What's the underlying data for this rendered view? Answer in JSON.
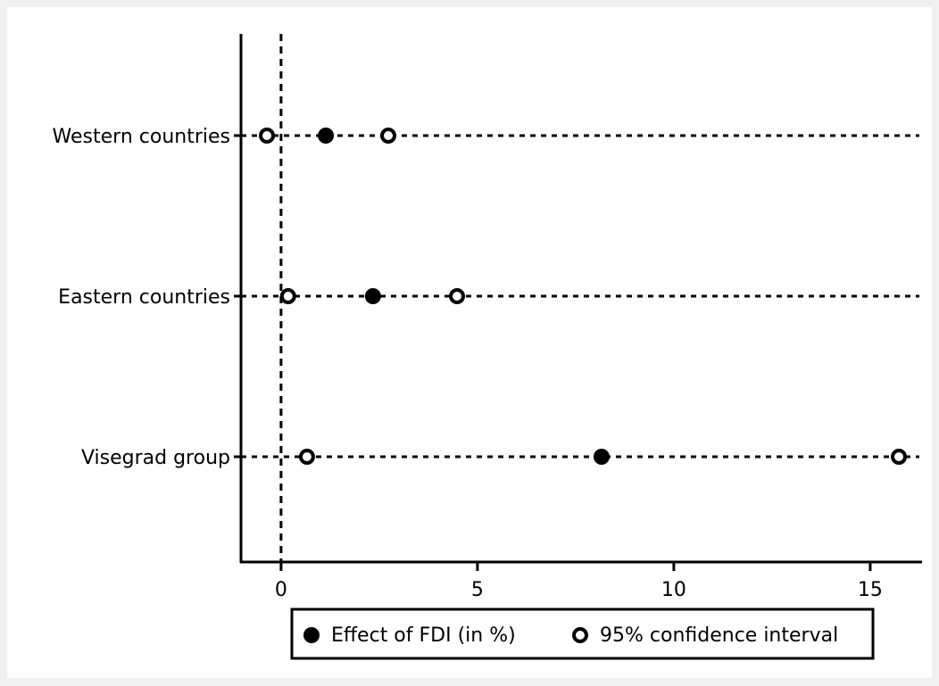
{
  "chart_data": {
    "type": "dot",
    "categories": [
      "Western countries",
      "Eastern countries",
      "Visegrad group"
    ],
    "series": [
      {
        "name": "Effect of FDI (in %)",
        "color": "#000000",
        "marker": "filled",
        "values": [
          1.14,
          2.34,
          8.16
        ]
      },
      {
        "name": "95% confidence interval",
        "color": "#000000",
        "marker": "hollow",
        "lower": [
          -0.36,
          0.18,
          0.66
        ],
        "upper": [
          2.73,
          4.48,
          15.73
        ]
      }
    ],
    "xlim": [
      -1.02,
      16.32
    ],
    "xticks": [
      0,
      5,
      10,
      15
    ],
    "vline": 0,
    "grid": true
  }
}
